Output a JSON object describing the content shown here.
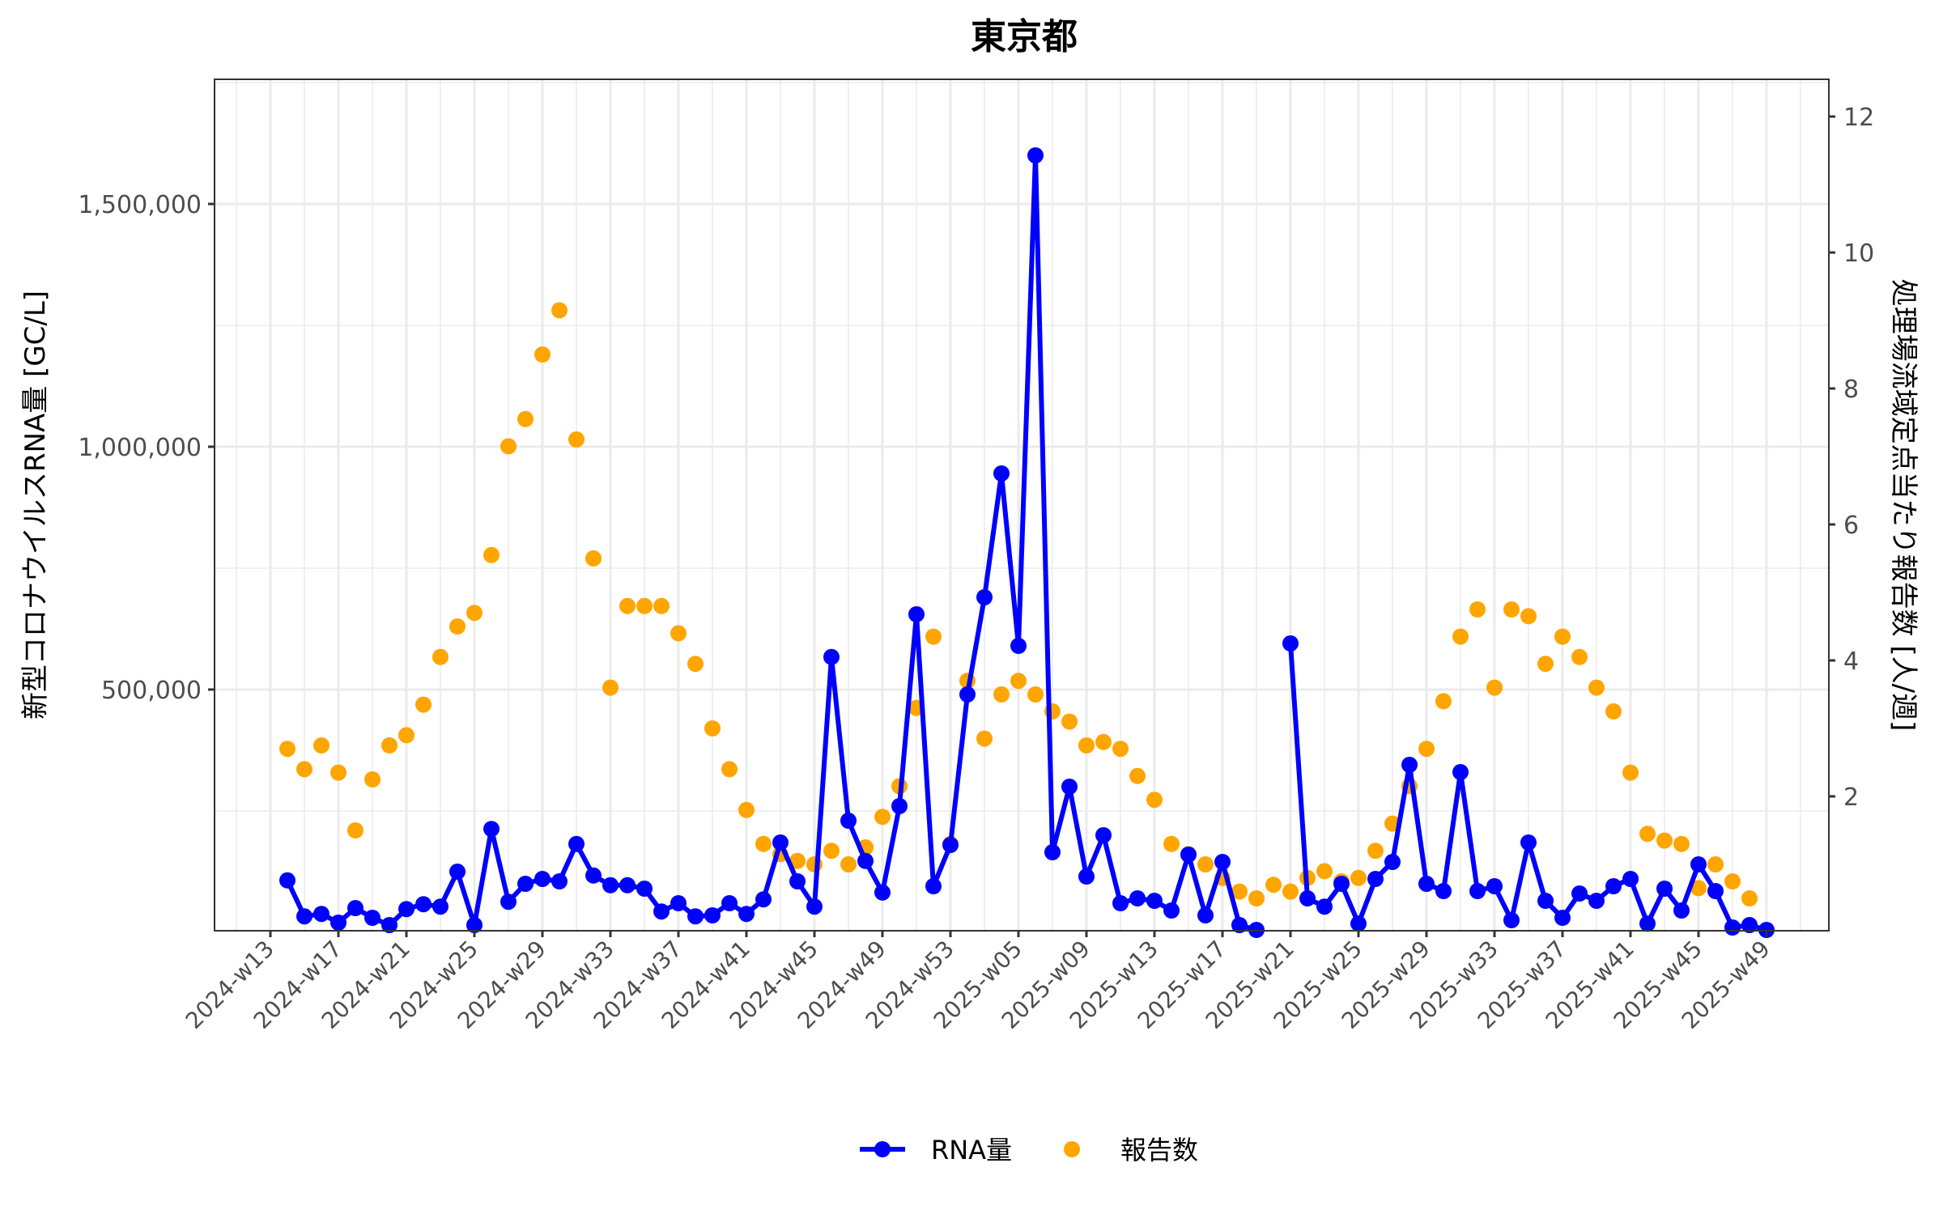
{
  "chart_data": {
    "type": "line",
    "title": "東京都",
    "xlabel": "",
    "ylabel": "新型コロナウイルスRNA量 [GC/L]",
    "ylabel_right": "処理場流域定点当たり報告数 [人/週]",
    "ylim": [
      0,
      1750000
    ],
    "ylim_right": [
      0,
      12.5
    ],
    "yticks": [
      500000,
      1000000,
      1500000
    ],
    "ytick_labels": [
      "500,000",
      "1,000,000",
      "1,500,000"
    ],
    "yticks_right": [
      2,
      4,
      6,
      8,
      10,
      12
    ],
    "ytick_labels_right": [
      "2",
      "4",
      "6",
      "8",
      "10",
      "12"
    ],
    "xtick_labels": [
      "2024-w13",
      "2024-w17",
      "2024-w21",
      "2024-w25",
      "2024-w29",
      "2024-w33",
      "2024-w37",
      "2024-w41",
      "2024-w45",
      "2024-w49",
      "2024-w53",
      "2025-w05",
      "2025-w09",
      "2025-w13",
      "2025-w17",
      "2025-w21",
      "2025-w25",
      "2025-w29",
      "2025-w33",
      "2025-w37",
      "2025-w41",
      "2025-w45",
      "2025-w49"
    ],
    "grid": true,
    "legend_position": "bottom",
    "legend": [
      {
        "label": "RNA量",
        "color": "#0000FF",
        "style": "line-point"
      },
      {
        "label": "報告数",
        "color": "#FFA500",
        "style": "point"
      }
    ],
    "x": [
      "2024-w14",
      "2024-w15",
      "2024-w16",
      "2024-w17",
      "2024-w18",
      "2024-w19",
      "2024-w20",
      "2024-w21",
      "2024-w22",
      "2024-w23",
      "2024-w24",
      "2024-w25",
      "2024-w26",
      "2024-w27",
      "2024-w28",
      "2024-w29",
      "2024-w30",
      "2024-w31",
      "2024-w32",
      "2024-w33",
      "2024-w34",
      "2024-w35",
      "2024-w36",
      "2024-w37",
      "2024-w38",
      "2024-w39",
      "2024-w40",
      "2024-w41",
      "2024-w42",
      "2024-w43",
      "2024-w44",
      "2024-w45",
      "2024-w46",
      "2024-w47",
      "2024-w48",
      "2024-w49",
      "2024-w50",
      "2024-w51",
      "2024-w52",
      "2024-w53",
      "2025-w01",
      "2025-w02",
      "2025-w03",
      "2025-w04",
      "2025-w05",
      "2025-w06",
      "2025-w07",
      "2025-w08",
      "2025-w09",
      "2025-w10",
      "2025-w11",
      "2025-w12",
      "2025-w13",
      "2025-w14",
      "2025-w15",
      "2025-w16",
      "2025-w17",
      "2025-w18",
      "2025-w19",
      "2025-w20",
      "2025-w21",
      "2025-w22",
      "2025-w23",
      "2025-w24",
      "2025-w25",
      "2025-w26",
      "2025-w27",
      "2025-w28",
      "2025-w29",
      "2025-w30",
      "2025-w31",
      "2025-w32",
      "2025-w33",
      "2025-w34",
      "2025-w35",
      "2025-w36",
      "2025-w37",
      "2025-w38",
      "2025-w39",
      "2025-w40",
      "2025-w41",
      "2025-w42",
      "2025-w43",
      "2025-w44",
      "2025-w45",
      "2025-w46",
      "2025-w47",
      "2025-w48"
    ],
    "series": [
      {
        "name": "RNA量",
        "axis": "left",
        "color": "#0000FF",
        "values": [
          107000,
          33000,
          38000,
          20000,
          50000,
          30000,
          15000,
          48000,
          58000,
          53000,
          125000,
          15000,
          213000,
          63000,
          100000,
          110000,
          105000,
          182000,
          117000,
          97000,
          97000,
          90000,
          43000,
          60000,
          33000,
          35000,
          60000,
          38000,
          68000,
          185000,
          105000,
          53000,
          567000,
          230000,
          147000,
          82000,
          260000,
          655000,
          95000,
          180000,
          490000,
          690000,
          945000,
          590000,
          1600000,
          165000,
          300000,
          115000,
          200000,
          60000,
          70000,
          65000,
          45000,
          160000,
          35000,
          145000,
          15000,
          5000,
          null,
          595000,
          70000,
          53000,
          100000,
          18000,
          110000,
          145000,
          345000,
          100000,
          85000,
          330000,
          85000,
          95000,
          25000,
          185000,
          65000,
          30000,
          80000,
          65000,
          95000,
          110000,
          18000,
          90000,
          45000,
          140000,
          85000,
          10000,
          15000,
          5000
        ]
      },
      {
        "name": "報告数",
        "axis": "right",
        "color": "#FFA500",
        "values": [
          2.7,
          2.4,
          2.75,
          2.35,
          1.5,
          2.25,
          2.75,
          2.9,
          3.35,
          4.05,
          4.5,
          4.7,
          5.55,
          7.15,
          7.55,
          8.5,
          9.15,
          7.25,
          5.5,
          3.6,
          4.8,
          4.8,
          4.8,
          4.4,
          3.95,
          3.0,
          2.4,
          1.8,
          1.3,
          1.15,
          1.05,
          1.0,
          1.2,
          1.0,
          1.25,
          1.7,
          2.15,
          3.3,
          4.35,
          1.3,
          3.7,
          2.85,
          3.5,
          3.7,
          3.5,
          3.25,
          3.1,
          2.75,
          2.8,
          2.7,
          2.3,
          1.95,
          1.3,
          1.15,
          1.0,
          0.8,
          0.6,
          0.5,
          0.7,
          0.6,
          0.8,
          0.9,
          0.75,
          0.8,
          1.2,
          1.6,
          2.15,
          2.7,
          3.4,
          4.35,
          4.75,
          3.6,
          4.75,
          4.65,
          3.95,
          4.35,
          4.05,
          3.6,
          3.25,
          2.35,
          1.45,
          1.35,
          1.3,
          0.65,
          1.0,
          0.75,
          0.5,
          null
        ]
      }
    ]
  }
}
